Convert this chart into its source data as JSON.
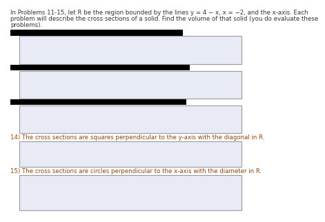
{
  "header_line1": "In Problems 11-15, let R be the region bounded by the lines y = 4 − x, x = −2, and the x-axis. Each",
  "header_line2": "problem will describe the cross sections of a solid. Find the volume of that solid (you do evaluate these",
  "header_line3": "problems).",
  "label_14": "14) The cross sections are squares perpendicular to the y-axis with the diagonal in R.",
  "label_15": "15) The cross sections are circles perpendicular to the x-axis with the diameter in R.",
  "box_facecolor": "#e8eaf6",
  "box_edgecolor": "#999999",
  "background_color": "#ffffff",
  "text_color": "#333333",
  "label_color": "#8b4513",
  "redacted_color": "#000000",
  "header_fontsize": 6.2,
  "label_fontsize": 6.2
}
